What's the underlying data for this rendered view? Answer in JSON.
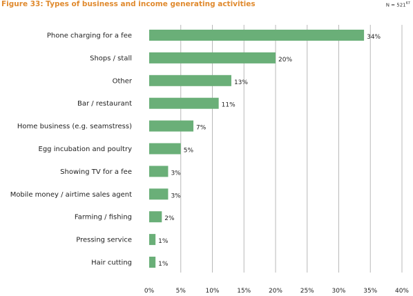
{
  "title": "Figure 33: Types of business and income generating activities",
  "n_label": "N = 521",
  "n_sup": "67",
  "chart_data": {
    "type": "bar",
    "orientation": "horizontal",
    "categories": [
      "Phone charging for a fee",
      "Shops / stall",
      "Other",
      "Bar / restaurant",
      "Home business (e.g. seamstress)",
      "Egg incubation and poultry",
      "Showing TV for a fee",
      "Mobile money / airtime sales agent",
      "Farming / fishing",
      "Pressing service",
      "Hair cutting"
    ],
    "values": [
      34,
      20,
      13,
      11,
      7,
      5,
      3,
      3,
      2,
      1,
      1
    ],
    "value_labels": [
      "34%",
      "20%",
      "13%",
      "11%",
      "7%",
      "5%",
      "3%",
      "3%",
      "2%",
      "1%",
      "1%"
    ],
    "x_ticks": [
      0,
      5,
      10,
      15,
      20,
      25,
      30,
      35,
      40
    ],
    "x_tick_labels": [
      "0%",
      "5%",
      "10%",
      "15%",
      "20%",
      "25%",
      "30%",
      "35%",
      "40%"
    ],
    "xlim": [
      0,
      40
    ],
    "grid": "vertical",
    "bar_color": "#6aaf78",
    "grid_color": "#b8b8b8"
  }
}
